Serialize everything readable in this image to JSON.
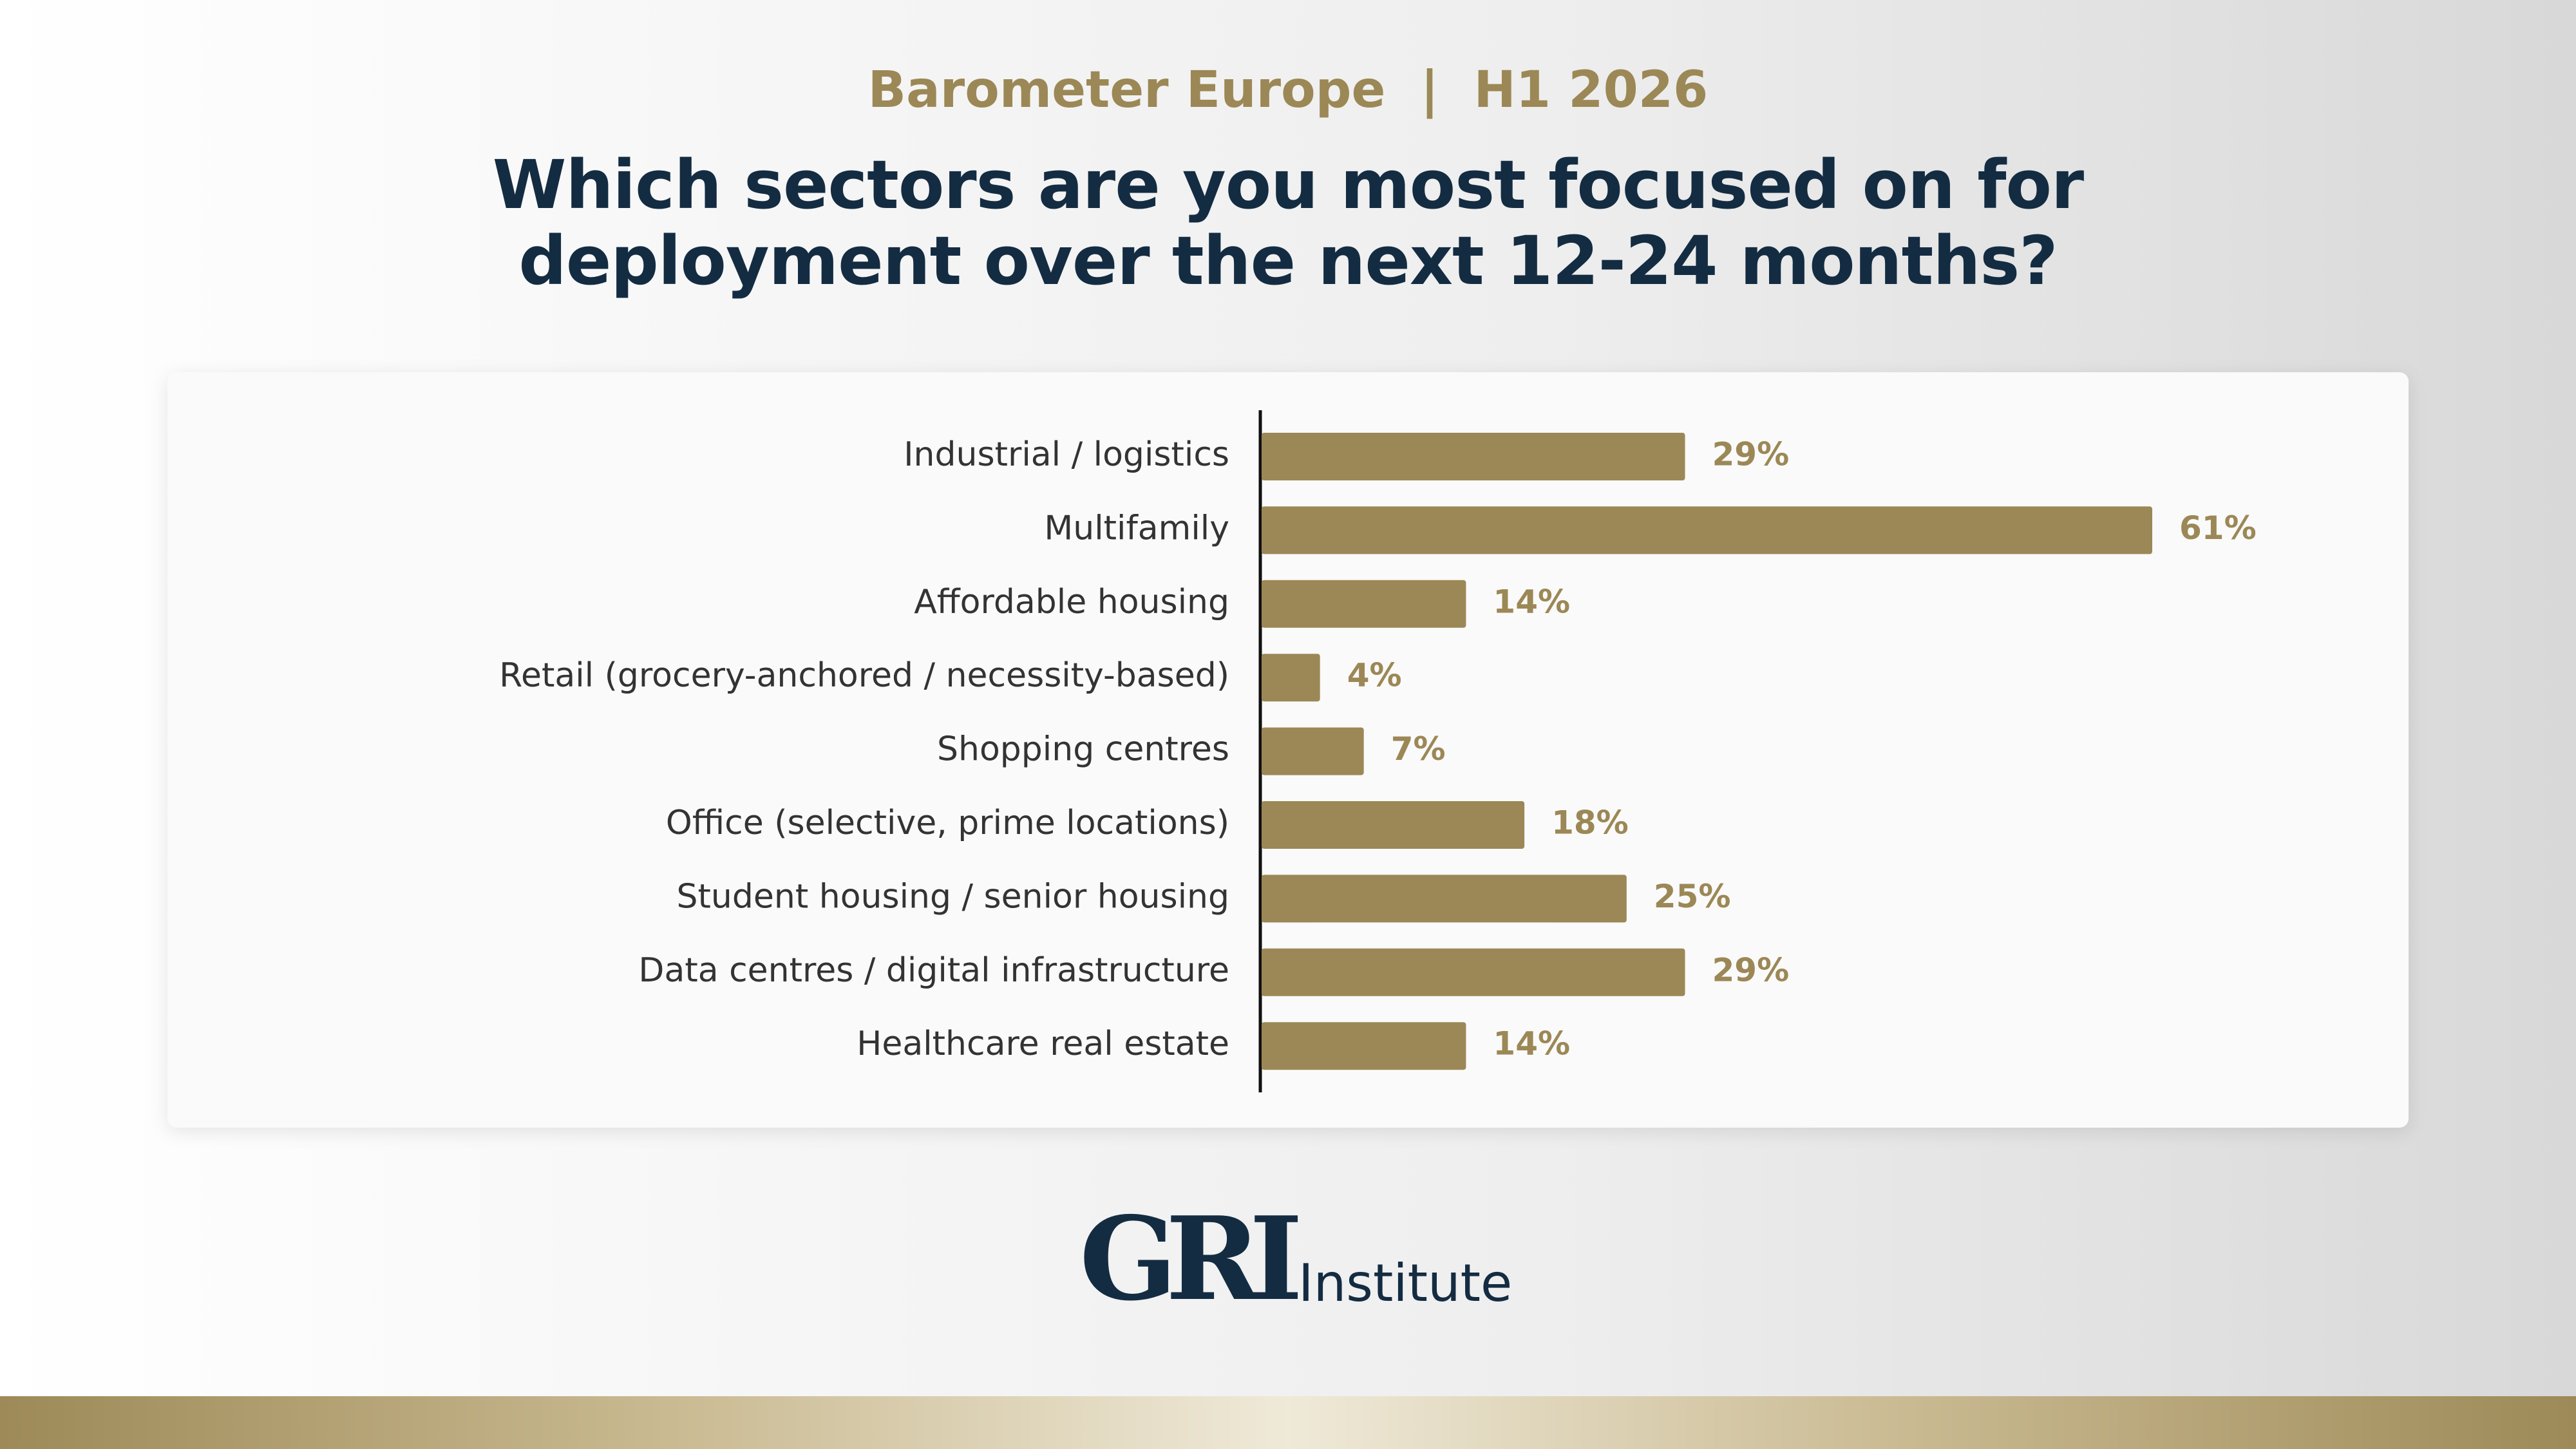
{
  "header": {
    "supertitle": "Barometer Europe  |  H1 2026",
    "title_line1": "Which sectors are you most focused on for",
    "title_line2": "deployment over the next 12-24 months?"
  },
  "colors": {
    "bar": "#9c8856",
    "title": "#142c42",
    "accent": "#9c8856"
  },
  "chart_data": {
    "type": "bar",
    "orientation": "horizontal",
    "title": "Which sectors are you most focused on for deployment over the next 12-24 months?",
    "xlabel": "",
    "ylabel": "",
    "xlim": [
      0,
      70
    ],
    "categories": [
      "Industrial / logistics",
      "Multifamily",
      "Affordable housing",
      "Retail (grocery-anchored / necessity-based)",
      "Shopping centres",
      "Office (selective, prime locations)",
      "Student housing / senior housing",
      "Data centres / digital infrastructure",
      "Healthcare real estate"
    ],
    "values": [
      29,
      61,
      14,
      4,
      7,
      18,
      25,
      29,
      14
    ],
    "value_labels": [
      "29%",
      "61%",
      "14%",
      "4%",
      "7%",
      "18%",
      "25%",
      "29%",
      "14%"
    ],
    "unit": "%"
  },
  "logo": {
    "mark": "GRI",
    "text": "Institute"
  }
}
